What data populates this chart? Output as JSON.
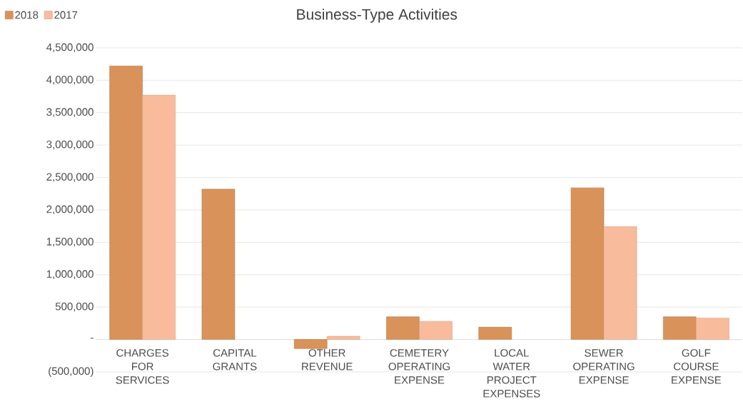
{
  "chart_data": {
    "type": "bar",
    "title": "Business-Type Activities",
    "categories": [
      "CHARGES FOR SERVICES",
      "CAPITAL GRANTS",
      "OTHER REVENUE",
      "CEMETERY OPERATING EXPENSE",
      "LOCAL WATER PROJECT EXPENSES",
      "SEWER OPERATING EXPENSE",
      "GOLF COURSE EXPENSE"
    ],
    "series": [
      {
        "name": "2018",
        "color": "#d9925a",
        "values": [
          4220000,
          2320000,
          -140000,
          350000,
          190000,
          2340000,
          350000
        ]
      },
      {
        "name": "2017",
        "color": "#f8bc9c",
        "values": [
          3770000,
          null,
          50000,
          280000,
          null,
          1740000,
          330000
        ]
      }
    ],
    "ylim": [
      -500000,
      4500000
    ],
    "yticks": [
      {
        "value": -500000,
        "label": "(500,000)"
      },
      {
        "value": 0,
        "label": "-"
      },
      {
        "value": 500000,
        "label": "500,000"
      },
      {
        "value": 1000000,
        "label": "1,000,000"
      },
      {
        "value": 1500000,
        "label": "1,500,000"
      },
      {
        "value": 2000000,
        "label": "2,000,000"
      },
      {
        "value": 2500000,
        "label": "2,500,000"
      },
      {
        "value": 3000000,
        "label": "3,000,000"
      },
      {
        "value": 3500000,
        "label": "3,500,000"
      },
      {
        "value": 4000000,
        "label": "4,000,000"
      },
      {
        "value": 4500000,
        "label": "4,500,000"
      }
    ],
    "grid": "y",
    "legend": "top left"
  }
}
